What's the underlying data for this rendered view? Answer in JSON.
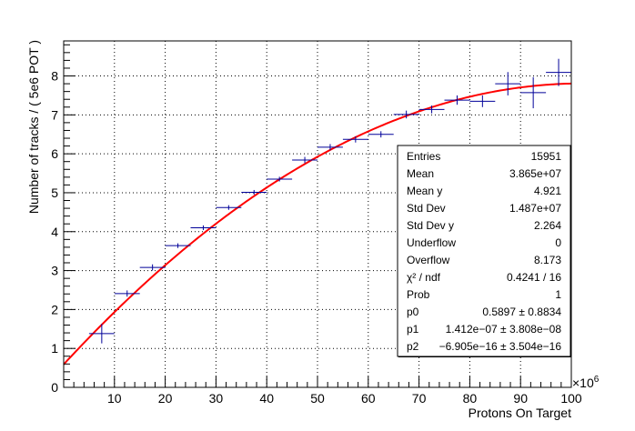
{
  "chart_data": {
    "type": "scatter",
    "xlabel": "Protons On Target",
    "ylabel": "Number of tracks / ( 5e6 POT )",
    "x_multiplier": "×10",
    "x_multiplier_exp": "6",
    "xlim": [
      0,
      100
    ],
    "ylim": [
      0,
      8.9
    ],
    "x_ticks": [
      10,
      20,
      30,
      40,
      50,
      60,
      70,
      80,
      90,
      100
    ],
    "y_ticks": [
      0,
      1,
      2,
      3,
      4,
      5,
      6,
      7,
      8
    ],
    "x_tick_labels": [
      "10",
      "20",
      "30",
      "40",
      "50",
      "60",
      "70",
      "80",
      "90",
      "100"
    ],
    "y_tick_labels": [
      "0",
      "1",
      "2",
      "3",
      "4",
      "5",
      "6",
      "7",
      "8"
    ],
    "grid": true,
    "points": [
      {
        "x": 7.5,
        "y": 1.38,
        "xerr": 2.5,
        "yerr": 0.25
      },
      {
        "x": 12.5,
        "y": 2.41,
        "xerr": 2.5,
        "yerr": 0.08
      },
      {
        "x": 17.5,
        "y": 3.08,
        "xerr": 2.5,
        "yerr": 0.08
      },
      {
        "x": 22.5,
        "y": 3.64,
        "xerr": 2.5,
        "yerr": 0.06
      },
      {
        "x": 27.5,
        "y": 4.1,
        "xerr": 2.5,
        "yerr": 0.06
      },
      {
        "x": 32.5,
        "y": 4.62,
        "xerr": 2.5,
        "yerr": 0.06
      },
      {
        "x": 37.5,
        "y": 5.01,
        "xerr": 2.5,
        "yerr": 0.06
      },
      {
        "x": 42.5,
        "y": 5.35,
        "xerr": 2.5,
        "yerr": 0.06
      },
      {
        "x": 47.5,
        "y": 5.84,
        "xerr": 2.5,
        "yerr": 0.08
      },
      {
        "x": 52.5,
        "y": 6.17,
        "xerr": 2.5,
        "yerr": 0.08
      },
      {
        "x": 57.5,
        "y": 6.37,
        "xerr": 2.5,
        "yerr": 0.08
      },
      {
        "x": 62.5,
        "y": 6.5,
        "xerr": 2.5,
        "yerr": 0.08
      },
      {
        "x": 67.5,
        "y": 7.01,
        "xerr": 2.5,
        "yerr": 0.1
      },
      {
        "x": 72.5,
        "y": 7.14,
        "xerr": 2.5,
        "yerr": 0.1
      },
      {
        "x": 77.5,
        "y": 7.38,
        "xerr": 2.5,
        "yerr": 0.12
      },
      {
        "x": 82.5,
        "y": 7.35,
        "xerr": 2.5,
        "yerr": 0.15
      },
      {
        "x": 87.5,
        "y": 7.8,
        "xerr": 2.5,
        "yerr": 0.3
      },
      {
        "x": 92.5,
        "y": 7.57,
        "xerr": 2.5,
        "yerr": 0.4
      },
      {
        "x": 97.5,
        "y": 8.09,
        "xerr": 2.5,
        "yerr": 0.35
      }
    ],
    "fit": {
      "p0": 0.5897,
      "p1": 1.412e-07,
      "p2": -6.905e-16,
      "x_scale": 1000000,
      "x_range": [
        0,
        100
      ],
      "color": "#ff0000"
    },
    "marker_color": "#000099",
    "stats_box": [
      {
        "label": "Entries",
        "value": "15951"
      },
      {
        "label": "Mean",
        "value": "3.865e+07"
      },
      {
        "label": "Mean y",
        "value": "4.921"
      },
      {
        "label": "Std Dev",
        "value": "1.487e+07"
      },
      {
        "label": "Std Dev y",
        "value": "2.264"
      },
      {
        "label": "Underflow",
        "value": "0"
      },
      {
        "label": "Overflow",
        "value": "8.173"
      },
      {
        "label": "χ² / ndf",
        "value": "0.4241 / 16"
      },
      {
        "label": "Prob",
        "value": "1"
      },
      {
        "label": "p0",
        "value": "0.5897 ± 0.8834"
      },
      {
        "label": "p1",
        "value": "1.412e−07 ± 3.808e−08"
      },
      {
        "label": "p2",
        "value": "−6.905e−16 ± 3.504e−16"
      }
    ]
  }
}
